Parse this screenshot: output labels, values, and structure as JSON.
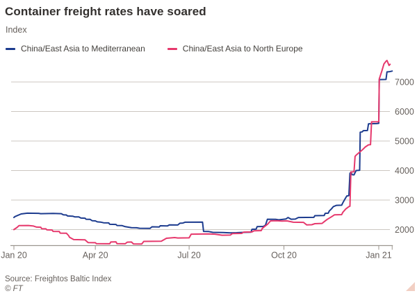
{
  "header": {
    "title": "Container freight rates have soared",
    "subtitle": "Index"
  },
  "footer": {
    "source": "Source: Freightos Baltic Index",
    "copyright": "© FT"
  },
  "chart_data": {
    "type": "line",
    "title": "Container freight rates have soared",
    "ylabel": "Index",
    "xlabel": "",
    "grid": "horizontal",
    "legend_position": "top-left",
    "ylim": [
      1460,
      7780
    ],
    "y_ticks": [
      2000,
      3000,
      4000,
      5000,
      6000,
      7000
    ],
    "x_unit": "days from chart start (mid-Jan 2020)",
    "x_ticks": [
      {
        "label": "Jan 20",
        "day": 0
      },
      {
        "label": "Apr 20",
        "day": 79
      },
      {
        "label": "Jul 20",
        "day": 170
      },
      {
        "label": "Oct 20",
        "day": 262
      },
      {
        "label": "Jan 21",
        "day": 354
      }
    ],
    "end_tick_day": 367,
    "palette": {
      "grid": "#ccc7c1",
      "axis": "#9b958e",
      "tick_text": "#66605c"
    },
    "series": [
      {
        "name": "China/East Asia to Mediterranean",
        "color": "#1c3b8e",
        "points": [
          [
            0,
            2410
          ],
          [
            1,
            2440
          ],
          [
            7,
            2530
          ],
          [
            13,
            2555
          ],
          [
            24,
            2550
          ],
          [
            26,
            2540
          ],
          [
            38,
            2545
          ],
          [
            46,
            2540
          ],
          [
            48,
            2500
          ],
          [
            51,
            2495
          ],
          [
            52,
            2460
          ],
          [
            57,
            2455
          ],
          [
            59,
            2430
          ],
          [
            63,
            2430
          ],
          [
            65,
            2390
          ],
          [
            69,
            2385
          ],
          [
            70,
            2350
          ],
          [
            74,
            2345
          ],
          [
            76,
            2300
          ],
          [
            79,
            2295
          ],
          [
            81,
            2260
          ],
          [
            84,
            2255
          ],
          [
            87,
            2230
          ],
          [
            92,
            2225
          ],
          [
            93,
            2180
          ],
          [
            99,
            2175
          ],
          [
            100,
            2140
          ],
          [
            105,
            2135
          ],
          [
            108,
            2100
          ],
          [
            114,
            2065
          ],
          [
            119,
            2060
          ],
          [
            122,
            2045
          ],
          [
            132,
            2040
          ],
          [
            134,
            2095
          ],
          [
            141,
            2090
          ],
          [
            142,
            2130
          ],
          [
            149,
            2125
          ],
          [
            151,
            2160
          ],
          [
            159,
            2155
          ],
          [
            161,
            2215
          ],
          [
            164,
            2220
          ],
          [
            166,
            2250
          ],
          [
            183,
            2255
          ],
          [
            184,
            1940
          ],
          [
            189,
            1935
          ],
          [
            193,
            1905
          ],
          [
            203,
            1900
          ],
          [
            210,
            1890
          ],
          [
            216,
            1895
          ],
          [
            223,
            1905
          ],
          [
            230,
            1910
          ],
          [
            231,
            2010
          ],
          [
            235,
            2015
          ],
          [
            236,
            2100
          ],
          [
            242,
            2105
          ],
          [
            244,
            2145
          ],
          [
            246,
            2350
          ],
          [
            254,
            2345
          ],
          [
            257,
            2330
          ],
          [
            264,
            2360
          ],
          [
            266,
            2410
          ],
          [
            269,
            2350
          ],
          [
            273,
            2355
          ],
          [
            276,
            2410
          ],
          [
            291,
            2415
          ],
          [
            292,
            2470
          ],
          [
            301,
            2475
          ],
          [
            302,
            2550
          ],
          [
            305,
            2555
          ],
          [
            306,
            2630
          ],
          [
            308,
            2700
          ],
          [
            310,
            2780
          ],
          [
            313,
            2820
          ],
          [
            318,
            2825
          ],
          [
            319,
            2900
          ],
          [
            321,
            3020
          ],
          [
            323,
            3140
          ],
          [
            325,
            3150
          ],
          [
            326,
            3900
          ],
          [
            327,
            3950
          ],
          [
            328,
            3860
          ],
          [
            330,
            3855
          ],
          [
            332,
            4000
          ],
          [
            335.5,
            4010
          ],
          [
            336,
            5300
          ],
          [
            338,
            5310
          ],
          [
            339,
            5350
          ],
          [
            343,
            5355
          ],
          [
            344,
            5580
          ],
          [
            352,
            5590
          ],
          [
            354,
            5600
          ],
          [
            354.5,
            7080
          ],
          [
            361,
            7085
          ],
          [
            362,
            7340
          ],
          [
            364,
            7345
          ],
          [
            367,
            7370
          ]
        ]
      },
      {
        "name": "China/East Asia to North Europe",
        "color": "#e6386c",
        "points": [
          [
            0,
            2000
          ],
          [
            3,
            2070
          ],
          [
            5,
            2135
          ],
          [
            14,
            2140
          ],
          [
            19,
            2120
          ],
          [
            22,
            2085
          ],
          [
            26,
            2080
          ],
          [
            27,
            2030
          ],
          [
            31,
            2025
          ],
          [
            32,
            1990
          ],
          [
            37,
            1985
          ],
          [
            38,
            1940
          ],
          [
            44,
            1935
          ],
          [
            45,
            1880
          ],
          [
            51,
            1875
          ],
          [
            53,
            1800
          ],
          [
            54,
            1740
          ],
          [
            58,
            1660
          ],
          [
            69,
            1655
          ],
          [
            72,
            1560
          ],
          [
            79,
            1555
          ],
          [
            80,
            1525
          ],
          [
            93,
            1520
          ],
          [
            94,
            1580
          ],
          [
            99,
            1585
          ],
          [
            100,
            1525
          ],
          [
            108,
            1520
          ],
          [
            110,
            1575
          ],
          [
            114,
            1580
          ],
          [
            116,
            1515
          ],
          [
            124,
            1510
          ],
          [
            126,
            1600
          ],
          [
            143,
            1605
          ],
          [
            148,
            1705
          ],
          [
            156,
            1730
          ],
          [
            159,
            1715
          ],
          [
            170,
            1720
          ],
          [
            172,
            1845
          ],
          [
            189,
            1855
          ],
          [
            195,
            1845
          ],
          [
            202,
            1810
          ],
          [
            210,
            1815
          ],
          [
            212,
            1865
          ],
          [
            221,
            1870
          ],
          [
            223,
            1915
          ],
          [
            231,
            1920
          ],
          [
            233,
            1960
          ],
          [
            240,
            1965
          ],
          [
            241,
            2040
          ],
          [
            243,
            2100
          ],
          [
            246,
            2180
          ],
          [
            249,
            2295
          ],
          [
            255,
            2300
          ],
          [
            260,
            2290
          ],
          [
            265,
            2295
          ],
          [
            271,
            2250
          ],
          [
            281,
            2245
          ],
          [
            284,
            2160
          ],
          [
            289,
            2165
          ],
          [
            292,
            2200
          ],
          [
            299,
            2210
          ],
          [
            301,
            2265
          ],
          [
            304,
            2345
          ],
          [
            308,
            2430
          ],
          [
            311,
            2500
          ],
          [
            318,
            2505
          ],
          [
            319,
            2580
          ],
          [
            322,
            2700
          ],
          [
            325,
            2780
          ],
          [
            326,
            2790
          ],
          [
            327,
            3950
          ],
          [
            330,
            3960
          ],
          [
            331,
            4480
          ],
          [
            332,
            4520
          ],
          [
            338,
            4700
          ],
          [
            341,
            4800
          ],
          [
            344,
            4870
          ],
          [
            346,
            4875
          ],
          [
            347,
            5650
          ],
          [
            354,
            5655
          ],
          [
            354.5,
            7100
          ],
          [
            357,
            7370
          ],
          [
            359,
            7610
          ],
          [
            361,
            7700
          ],
          [
            362,
            7730
          ],
          [
            364,
            7560
          ],
          [
            365,
            7600
          ]
        ]
      }
    ]
  }
}
